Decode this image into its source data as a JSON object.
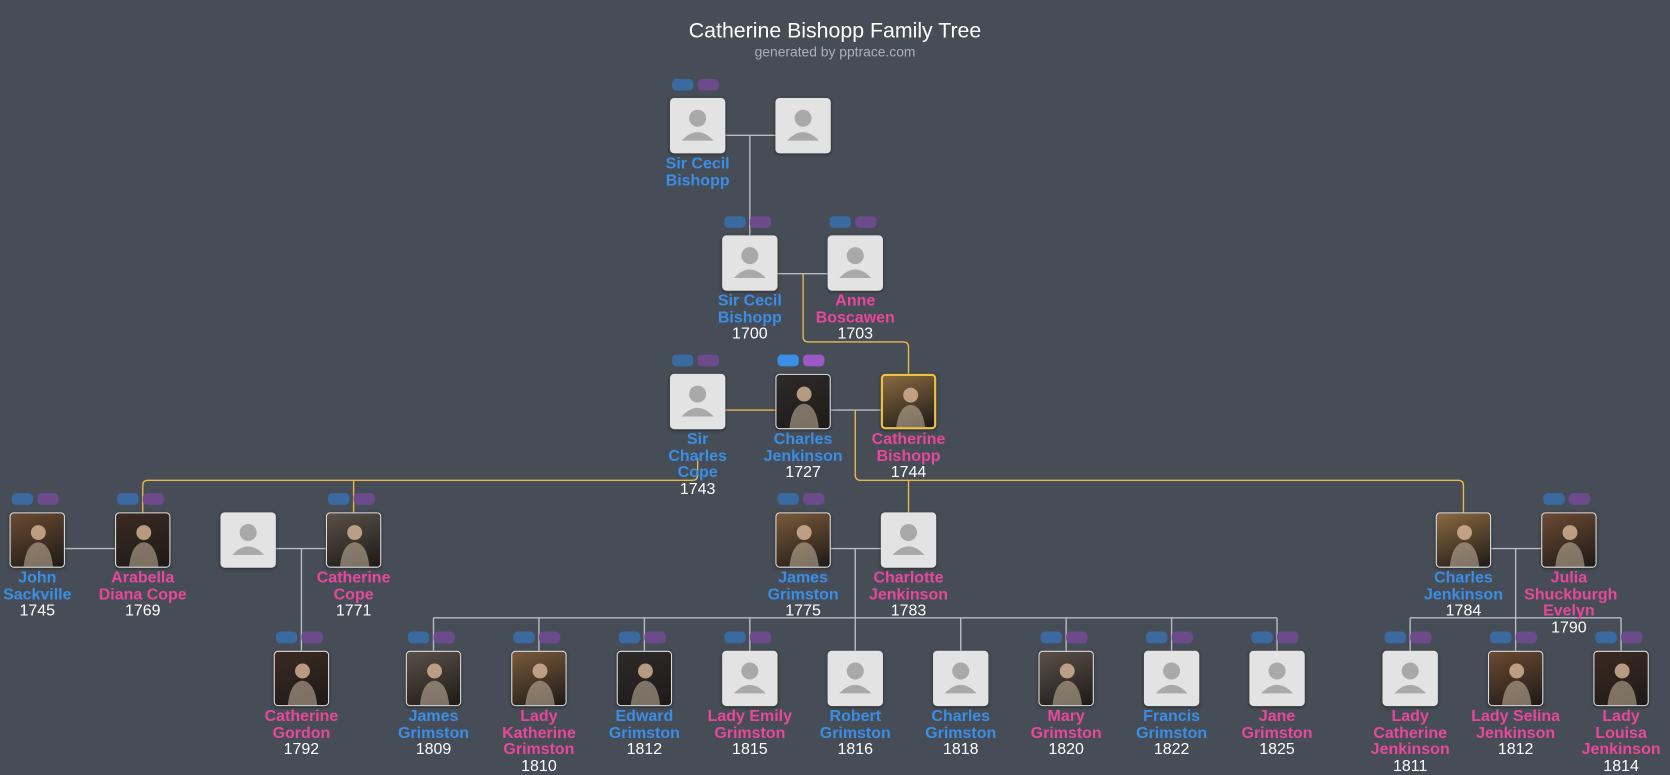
{
  "header": {
    "title": "Catherine Bishopp Family Tree",
    "subtitle": "generated by pptrace.com"
  },
  "nodes": [
    {
      "label": "Sir Cecil Bishopp"
    },
    {
      "label": "Sir Cecil Bishopp",
      "year": "1700"
    },
    {
      "label": "Anne Boscawen",
      "year": "1703"
    },
    {
      "label": "Sir Charles Cope",
      "year": "1743"
    },
    {
      "label": "Charles Jenkinson",
      "year": "1727"
    },
    {
      "label": "Catherine Bishopp",
      "year": "1744"
    },
    {
      "label": "John Sackville",
      "year": "1745"
    },
    {
      "label": "Arabella Diana Cope",
      "year": "1769"
    },
    {
      "label": "Catherine Cope",
      "year": "1771"
    },
    {
      "label": "James Grimston",
      "year": "1775"
    },
    {
      "label": "Charlotte Jenkinson",
      "year": "1783"
    },
    {
      "label": "Charles Jenkinson",
      "year": "1784"
    },
    {
      "label": "Julia Shuckburgh Evelyn",
      "year": "1790"
    },
    {
      "label": "Catherine Gordon",
      "year": "1792"
    },
    {
      "label": "James Grimston",
      "year": "1809"
    },
    {
      "label": "Lady Katherine Grimston",
      "year": "1810"
    },
    {
      "label": "Edward Grimston",
      "year": "1812"
    },
    {
      "label": "Lady Emily Grimston",
      "year": "1815"
    },
    {
      "label": "Robert Grimston",
      "year": "1816"
    },
    {
      "label": "Charles Grimston",
      "year": "1818"
    },
    {
      "label": "Mary Grimston",
      "year": "1820"
    },
    {
      "label": "Francis Grimston",
      "year": "1822"
    },
    {
      "label": "Jane Grimston",
      "year": "1825"
    },
    {
      "label": "Lady Catherine Jenkinson",
      "year": "1811"
    },
    {
      "label": "Lady Selina Jenkinson",
      "year": "1812"
    },
    {
      "label": "Lady Louisa Jenkinson",
      "year": "1814"
    }
  ]
}
